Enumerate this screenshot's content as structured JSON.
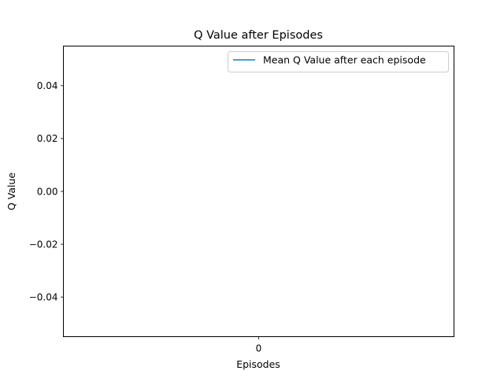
{
  "chart_data": {
    "type": "line",
    "title": "Q Value after Episodes",
    "xlabel": "Episodes",
    "ylabel": "Q Value",
    "x": [
      0
    ],
    "series": [
      {
        "name": "Mean Q Value after each episode",
        "values": [
          0.0
        ],
        "color": "#1f77b4"
      }
    ],
    "xlim": [
      -0.055,
      0.055
    ],
    "ylim": [
      -0.055,
      0.055
    ],
    "xticks": [
      0
    ],
    "xtick_labels": [
      "0"
    ],
    "yticks": [
      -0.04,
      -0.02,
      0.0,
      0.02,
      0.04
    ],
    "ytick_labels": [
      "−0.04",
      "−0.02",
      "0.00",
      "0.02",
      "0.04"
    ],
    "grid": false,
    "legend_position": "top-right"
  }
}
